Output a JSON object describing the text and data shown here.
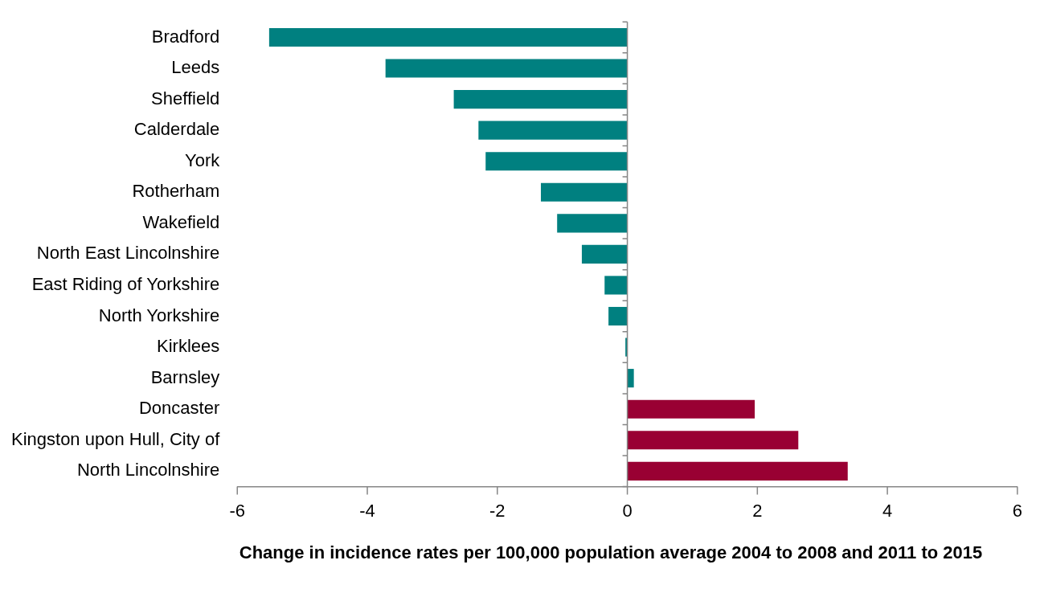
{
  "chart_data": {
    "type": "bar",
    "orientation": "horizontal",
    "xlabel": "Change in incidence rates per 100,000 population average 2004 to 2008 and 2011 to 2015",
    "categories": [
      "Bradford",
      "Leeds",
      "Sheffield",
      "Calderdale",
      "York",
      "Rotherham",
      "Wakefield",
      "North East Lincolnshire",
      "East Riding of Yorkshire",
      "North Yorkshire",
      "Kirklees",
      "Barnsley",
      "Doncaster",
      "Kingston upon Hull, City of",
      "North Lincolnshire"
    ],
    "values": [
      -5.51,
      -3.72,
      -2.67,
      -2.29,
      -2.18,
      -1.33,
      -1.08,
      -0.7,
      -0.35,
      -0.29,
      -0.03,
      0.1,
      1.96,
      2.63,
      3.39
    ],
    "colors": [
      "#008080",
      "#008080",
      "#008080",
      "#008080",
      "#008080",
      "#008080",
      "#008080",
      "#008080",
      "#008080",
      "#008080",
      "#008080",
      "#008080",
      "#990033",
      "#990033",
      "#990033"
    ],
    "xlim": [
      -6,
      6
    ],
    "xticks": [
      -6,
      -4,
      -2,
      0,
      2,
      4,
      6
    ],
    "legend": false
  }
}
